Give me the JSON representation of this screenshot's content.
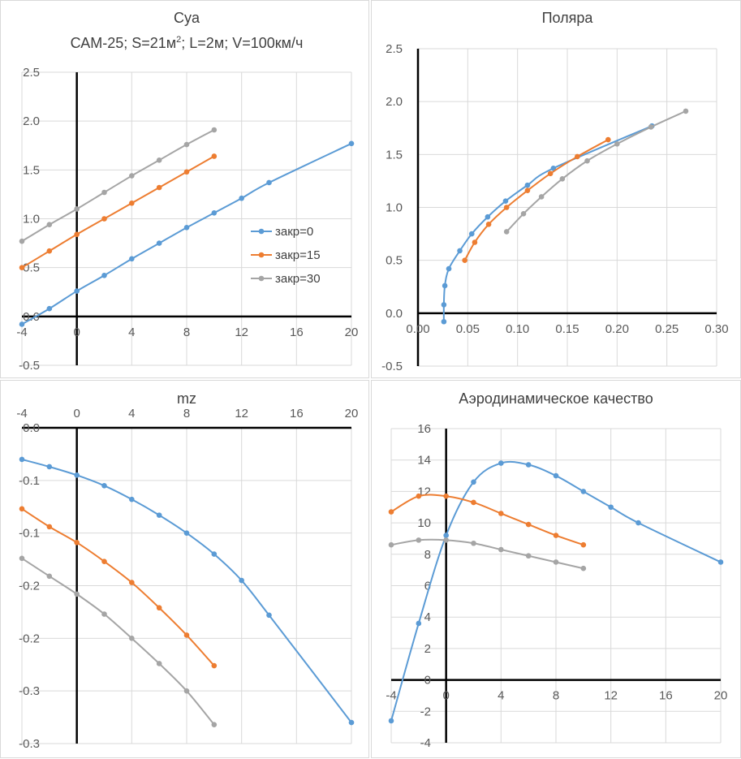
{
  "colors": {
    "series0": "#5b9bd5",
    "series15": "#ed7d31",
    "series30": "#a5a5a5",
    "grid": "#d9d9d9",
    "axis": "#000000"
  },
  "chart_data": [
    {
      "id": "cya",
      "type": "line",
      "title": "Cya",
      "subtitle_parts": [
        "САМ-25; S=21м",
        "2",
        "; L=2м; V=100км/ч"
      ],
      "xlim": [
        -4,
        20
      ],
      "ylim": [
        -0.5,
        2.5
      ],
      "x_ticks": [
        -4,
        0,
        4,
        8,
        12,
        16,
        20
      ],
      "x_tick_labels": [
        "-4",
        "0",
        "4",
        "8",
        "12",
        "16",
        "20"
      ],
      "y_ticks": [
        -0.5,
        0,
        0.5,
        1,
        1.5,
        2,
        2.5
      ],
      "y_tick_labels": [
        "-0.5",
        "0.0",
        "0.5",
        "1.0",
        "1.5",
        "2.0",
        "2.5"
      ],
      "legend_position": "right",
      "series": [
        {
          "name": "закр=0",
          "x": [
            -4,
            -2,
            0,
            2,
            4,
            6,
            8,
            10,
            12,
            14,
            20
          ],
          "y": [
            -0.08,
            0.08,
            0.26,
            0.42,
            0.59,
            0.75,
            0.91,
            1.06,
            1.21,
            1.37,
            1.77
          ]
        },
        {
          "name": "закр=15",
          "x": [
            -4,
            -2,
            0,
            2,
            4,
            6,
            8,
            10
          ],
          "y": [
            0.5,
            0.67,
            0.84,
            1.0,
            1.16,
            1.32,
            1.48,
            1.64
          ]
        },
        {
          "name": "закр=30",
          "x": [
            -4,
            -2,
            0,
            2,
            4,
            6,
            8,
            10
          ],
          "y": [
            0.77,
            0.94,
            1.1,
            1.27,
            1.44,
            1.6,
            1.76,
            1.91
          ]
        }
      ]
    },
    {
      "id": "polar",
      "type": "line",
      "title": "Поляра",
      "xlim": [
        0,
        0.3
      ],
      "ylim": [
        -0.5,
        2.5
      ],
      "x_ticks": [
        0,
        0.05,
        0.1,
        0.15,
        0.2,
        0.25,
        0.3
      ],
      "x_tick_labels": [
        "0.00",
        "0.05",
        "0.10",
        "0.15",
        "0.20",
        "0.25",
        "0.30"
      ],
      "y_ticks": [
        -0.5,
        0,
        0.5,
        1,
        1.5,
        2,
        2.5
      ],
      "y_tick_labels": [
        "-0.5",
        "0.0",
        "0.5",
        "1.0",
        "1.5",
        "2.0",
        "2.5"
      ],
      "series": [
        {
          "name": "закр=0",
          "x": [
            0.026,
            0.026,
            0.027,
            0.031,
            0.042,
            0.054,
            0.07,
            0.088,
            0.11,
            0.136,
            0.235
          ],
          "y": [
            -0.08,
            0.08,
            0.26,
            0.42,
            0.59,
            0.75,
            0.91,
            1.06,
            1.21,
            1.37,
            1.77
          ]
        },
        {
          "name": "закр=15",
          "x": [
            0.047,
            0.057,
            0.071,
            0.089,
            0.11,
            0.133,
            0.16,
            0.191
          ],
          "y": [
            0.5,
            0.67,
            0.84,
            1.0,
            1.16,
            1.32,
            1.48,
            1.64
          ]
        },
        {
          "name": "закр=30",
          "x": [
            0.089,
            0.106,
            0.124,
            0.145,
            0.17,
            0.2,
            0.234,
            0.269
          ],
          "y": [
            0.77,
            0.94,
            1.1,
            1.27,
            1.44,
            1.6,
            1.76,
            1.91
          ]
        }
      ]
    },
    {
      "id": "mz",
      "type": "line",
      "title": "mz",
      "xlim": [
        -4,
        20
      ],
      "ylim": [
        -0.3,
        0.0
      ],
      "x_ticks": [
        -4,
        0,
        4,
        8,
        12,
        16,
        20
      ],
      "x_tick_labels": [
        "-4",
        "0",
        "4",
        "8",
        "12",
        "16",
        "20"
      ],
      "x_labels_above_axis": true,
      "y_ticks": [
        0,
        -0.05,
        -0.1,
        -0.15,
        -0.2,
        -0.25,
        -0.3
      ],
      "y_tick_labels": [
        "0.0",
        "-0.1",
        "-0.1",
        "-0.2",
        "-0.2",
        "-0.3",
        "-0.3"
      ],
      "series": [
        {
          "name": "закр=0",
          "x": [
            -4,
            -2,
            0,
            2,
            4,
            6,
            8,
            10,
            12,
            14,
            20
          ],
          "y": [
            -0.03,
            -0.037,
            -0.045,
            -0.055,
            -0.068,
            -0.083,
            -0.1,
            -0.12,
            -0.145,
            -0.178,
            -0.28
          ]
        },
        {
          "name": "закр=15",
          "x": [
            -4,
            -2,
            0,
            2,
            4,
            6,
            8,
            10
          ],
          "y": [
            -0.077,
            -0.094,
            -0.109,
            -0.127,
            -0.147,
            -0.171,
            -0.197,
            -0.226
          ]
        },
        {
          "name": "закр=30",
          "x": [
            -4,
            -2,
            0,
            2,
            4,
            6,
            8,
            10
          ],
          "y": [
            -0.124,
            -0.141,
            -0.158,
            -0.177,
            -0.2,
            -0.224,
            -0.25,
            -0.282
          ]
        }
      ]
    },
    {
      "id": "quality",
      "type": "line",
      "title": "Аэродинамическое качество",
      "xlim": [
        -4,
        20
      ],
      "ylim": [
        -4,
        16
      ],
      "x_ticks": [
        -4,
        0,
        4,
        8,
        12,
        16,
        20
      ],
      "x_tick_labels": [
        "-4",
        "0",
        "4",
        "8",
        "12",
        "16",
        "20"
      ],
      "y_ticks": [
        -4,
        -2,
        0,
        2,
        4,
        6,
        8,
        10,
        12,
        14,
        16
      ],
      "y_tick_labels": [
        "-4",
        "-2",
        "0",
        "2",
        "4",
        "6",
        "8",
        "10",
        "12",
        "14",
        "16"
      ],
      "series": [
        {
          "name": "закр=0",
          "x": [
            -4,
            -2,
            0,
            2,
            4,
            6,
            8,
            10,
            12,
            14,
            20
          ],
          "y": [
            -2.6,
            3.6,
            9.2,
            12.6,
            13.8,
            13.7,
            13.0,
            12.0,
            11.0,
            10.0,
            7.5
          ]
        },
        {
          "name": "закр=15",
          "x": [
            -4,
            -2,
            0,
            2,
            4,
            6,
            8,
            10
          ],
          "y": [
            10.7,
            11.7,
            11.7,
            11.3,
            10.6,
            9.9,
            9.2,
            8.6
          ]
        },
        {
          "name": "закр=30",
          "x": [
            -4,
            -2,
            0,
            2,
            4,
            6,
            8,
            10
          ],
          "y": [
            8.6,
            8.9,
            8.9,
            8.7,
            8.3,
            7.9,
            7.5,
            7.1
          ]
        }
      ]
    }
  ]
}
